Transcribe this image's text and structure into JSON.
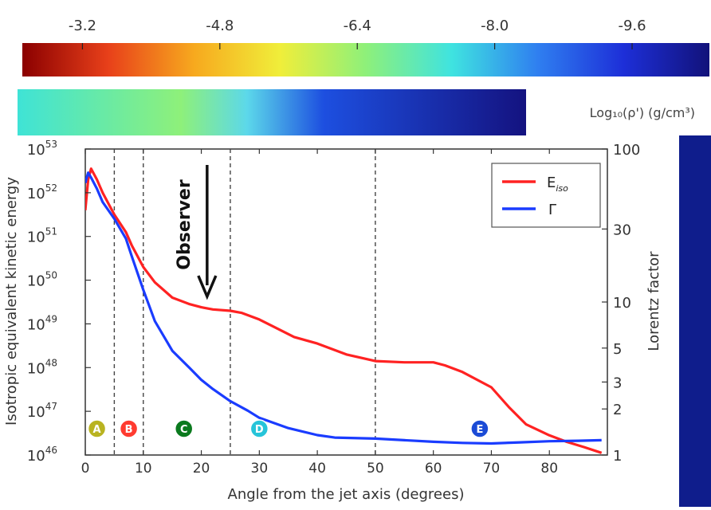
{
  "colorbar": {
    "tick_labels": [
      "-3.2",
      "-4.8",
      "-6.4",
      "-8.0",
      "-9.6"
    ],
    "tick_values": [
      -3.2,
      -4.8,
      -6.4,
      -8.0,
      -9.6
    ],
    "range": [
      -2.5,
      -10.5
    ],
    "label": "Log₁₀(ρ') (g/cm³)",
    "colors": [
      "#8b0000",
      "#e8401a",
      "#f7a91e",
      "#f0ee3a",
      "#8ef07a",
      "#3fe3e0",
      "#2f7ff0",
      "#1d2fd8",
      "#12127a"
    ]
  },
  "chart_data": {
    "type": "line",
    "xlabel": "Angle from the jet axis (degrees)",
    "ylabel": "Isotropic equivalent kinetic energy",
    "ylabel_right": "Lorentz factor",
    "xlim": [
      0,
      90
    ],
    "ylim_log10": [
      46,
      53
    ],
    "y2lim": [
      1,
      100
    ],
    "y2_scale": "log",
    "y_scale": "log",
    "xticks": [
      0,
      10,
      20,
      30,
      40,
      50,
      60,
      70,
      80
    ],
    "yticks": [
      {
        "base": "10",
        "exp": "46",
        "value": 46
      },
      {
        "base": "10",
        "exp": "47",
        "value": 47
      },
      {
        "base": "10",
        "exp": "48",
        "value": 48
      },
      {
        "base": "10",
        "exp": "49",
        "value": 49
      },
      {
        "base": "10",
        "exp": "50",
        "value": 50
      },
      {
        "base": "10",
        "exp": "51",
        "value": 51
      },
      {
        "base": "10",
        "exp": "52",
        "value": 52
      },
      {
        "base": "10",
        "exp": "53",
        "value": 53
      }
    ],
    "y2ticks": [
      1,
      2,
      3,
      5,
      10,
      30,
      100
    ],
    "vlines": [
      5,
      10,
      25,
      50
    ],
    "annotation": {
      "text": "Observer",
      "x": 21
    },
    "legend": {
      "position": "top-right",
      "entries": [
        {
          "label": "E",
          "sub": "iso",
          "color": "#ff2222"
        },
        {
          "label": "Γ",
          "sub": "",
          "color": "#1a3cff"
        }
      ]
    },
    "regions": [
      {
        "label": "A",
        "x": 2,
        "color": "#b9b321"
      },
      {
        "label": "B",
        "x": 7.5,
        "color": "#ff3b30"
      },
      {
        "label": "C",
        "x": 17,
        "color": "#0b7a1e"
      },
      {
        "label": "D",
        "x": 30,
        "color": "#27c4d9"
      },
      {
        "label": "E",
        "x": 68,
        "color": "#1b4bd6"
      }
    ],
    "series": [
      {
        "name": "E_iso",
        "axis": "left",
        "color": "#ff2222",
        "x": [
          0,
          0.5,
          1,
          2,
          3,
          5,
          7,
          8,
          10,
          12,
          15,
          18,
          20,
          22,
          25,
          27,
          30,
          33,
          36,
          40,
          45,
          50,
          55,
          60,
          62,
          65,
          70,
          73,
          76,
          80,
          83,
          86,
          89
        ],
        "y": [
          51.6,
          52.3,
          52.55,
          52.3,
          52.0,
          51.5,
          51.1,
          50.8,
          50.3,
          49.95,
          49.6,
          49.45,
          49.38,
          49.33,
          49.3,
          49.25,
          49.1,
          48.9,
          48.7,
          48.55,
          48.3,
          48.15,
          48.12,
          48.12,
          48.05,
          47.9,
          47.55,
          47.1,
          46.7,
          46.45,
          46.3,
          46.18,
          46.05
        ]
      },
      {
        "name": "Γ",
        "axis": "right",
        "color": "#1a3cff",
        "x": [
          0,
          0.5,
          1,
          2,
          3,
          5,
          7,
          8,
          10,
          12,
          15,
          18,
          20,
          22,
          25,
          28,
          30,
          35,
          40,
          43,
          50,
          55,
          60,
          65,
          70,
          75,
          80,
          85,
          89
        ],
        "y": [
          60,
          70,
          65,
          55,
          45,
          35,
          26,
          20,
          12,
          7.5,
          4.8,
          3.7,
          3.1,
          2.7,
          2.25,
          1.95,
          1.75,
          1.5,
          1.35,
          1.3,
          1.28,
          1.25,
          1.22,
          1.2,
          1.19,
          1.21,
          1.23,
          1.24,
          1.25
        ]
      }
    ]
  }
}
